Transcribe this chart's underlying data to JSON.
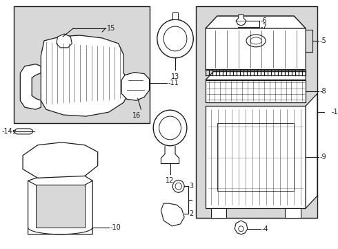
{
  "bg_color": "#ffffff",
  "box_bg": "#d8d8d8",
  "line_color": "#1a1a1a",
  "label_color": "#1a1a1a",
  "fig_width": 4.9,
  "fig_height": 3.6,
  "dpi": 100
}
